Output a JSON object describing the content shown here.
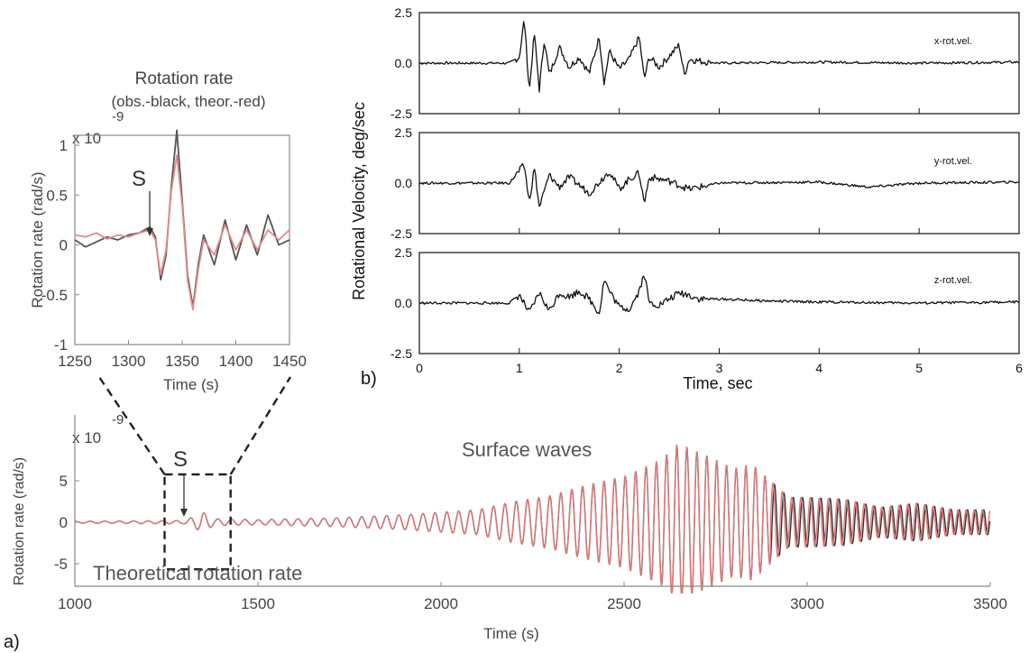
{
  "figure": {
    "panel_a_label": "a)",
    "panel_b_label": "b)"
  },
  "chart_data": [
    {
      "id": "inset",
      "type": "line",
      "title": "Rotation rate",
      "subtitle": "(obs.-black, theor.-red)",
      "xlabel": "Time (s)",
      "ylabel": "Rotation rate (rad/s)",
      "exponent_label": "x 10",
      "exponent_power": "-9",
      "annotation": "S",
      "annotation_x": 1320,
      "xlim": [
        1250,
        1450
      ],
      "ylim": [
        -1,
        1.1
      ],
      "xticks": [
        "1250",
        "1300",
        "1350",
        "1400",
        "1450"
      ],
      "yticks": [
        "1",
        "0.5",
        "0",
        "-0.5",
        "-1"
      ],
      "series": [
        {
          "color": "#555555",
          "x": [
            1250,
            1260,
            1270,
            1280,
            1290,
            1300,
            1310,
            1320,
            1325,
            1330,
            1335,
            1340,
            1345,
            1350,
            1355,
            1360,
            1365,
            1370,
            1380,
            1390,
            1400,
            1410,
            1420,
            1430,
            1440,
            1450
          ],
          "y": [
            0.05,
            -0.02,
            0.03,
            0.08,
            0.05,
            0.1,
            0.12,
            0.18,
            0.08,
            -0.35,
            -0.1,
            0.6,
            1.15,
            0.45,
            -0.3,
            -0.62,
            -0.2,
            0.1,
            -0.2,
            0.25,
            -0.15,
            0.2,
            -0.1,
            0.3,
            0.0,
            0.05
          ]
        },
        {
          "color": "#e38a8a",
          "x": [
            1250,
            1260,
            1270,
            1280,
            1290,
            1300,
            1310,
            1320,
            1325,
            1330,
            1335,
            1340,
            1345,
            1350,
            1355,
            1360,
            1365,
            1370,
            1380,
            1390,
            1400,
            1410,
            1420,
            1430,
            1440,
            1450
          ],
          "y": [
            0.1,
            0.08,
            0.12,
            0.06,
            0.1,
            0.08,
            0.12,
            0.15,
            0.05,
            -0.3,
            -0.05,
            0.55,
            0.9,
            0.4,
            -0.35,
            -0.65,
            -0.25,
            0.05,
            -0.1,
            0.2,
            -0.05,
            0.15,
            -0.05,
            0.15,
            0.05,
            0.15
          ]
        }
      ]
    },
    {
      "id": "rotvel",
      "type": "line",
      "ylabel": "Rotational Velocity, deg/sec",
      "xlabel": "Time, sec",
      "xlim": [
        0,
        6
      ],
      "xticks": [
        "0",
        "1",
        "2",
        "3",
        "4",
        "5",
        "6"
      ],
      "yticks_top": [
        "2.5",
        "0.0",
        "-2.5"
      ],
      "yticks_mid": [
        "2.5",
        "0.0",
        "-2.5"
      ],
      "yticks_bot": [
        "2.5",
        "0.0",
        "-2.5"
      ],
      "series": [
        {
          "name": "x-rot.vel.",
          "x": [
            0,
            0.9,
            1.0,
            1.05,
            1.1,
            1.15,
            1.2,
            1.25,
            1.3,
            1.4,
            1.5,
            1.6,
            1.7,
            1.8,
            1.85,
            1.9,
            2.0,
            2.1,
            2.2,
            2.25,
            2.3,
            2.4,
            2.6,
            2.65,
            2.7,
            2.8,
            3.0,
            4.0,
            5.0,
            6.0
          ],
          "y": [
            0,
            0,
            0.3,
            2.2,
            -1.4,
            1.5,
            -1.3,
            1.2,
            -0.6,
            0.8,
            -0.2,
            0.3,
            -0.5,
            1.3,
            -1.0,
            0.6,
            -0.3,
            0.2,
            1.3,
            -0.8,
            0.3,
            -0.2,
            0.9,
            -0.6,
            0.2,
            0.1,
            0,
            0.05,
            0,
            0.05
          ]
        },
        {
          "name": "y-rot.vel.",
          "x": [
            0,
            0.9,
            1.05,
            1.1,
            1.15,
            1.2,
            1.3,
            1.4,
            1.5,
            1.7,
            1.9,
            2.0,
            2.1,
            2.2,
            2.25,
            2.3,
            2.5,
            2.7,
            3.0,
            4.0,
            4.5,
            5.0,
            6.0
          ],
          "y": [
            0,
            0,
            0.9,
            -1.0,
            0.8,
            -1.2,
            0.4,
            -0.2,
            0.3,
            -0.5,
            0.6,
            -0.3,
            0.2,
            0.5,
            -1.0,
            0.3,
            0.1,
            -0.3,
            0,
            0.05,
            -0.2,
            0,
            0.05
          ]
        },
        {
          "name": "z-rot.vel.",
          "x": [
            0,
            0.9,
            1.0,
            1.1,
            1.2,
            1.3,
            1.4,
            1.5,
            1.6,
            1.7,
            1.8,
            1.85,
            1.9,
            2.0,
            2.1,
            2.2,
            2.25,
            2.3,
            2.4,
            2.6,
            2.7,
            2.8,
            3.0,
            3.5,
            4.0,
            5.0,
            6.0
          ],
          "y": [
            0,
            0,
            0.4,
            -0.5,
            0.5,
            -0.4,
            0.5,
            0.3,
            0.6,
            0.2,
            -0.5,
            1.2,
            0.6,
            -0.2,
            -0.3,
            0.6,
            1.5,
            0.0,
            -0.1,
            0.5,
            0.4,
            0.2,
            0.2,
            0.1,
            0.05,
            0,
            0.05
          ]
        }
      ]
    },
    {
      "id": "theoretical",
      "type": "line",
      "xlabel": "Time (s)",
      "ylabel": "Rotation rate (rad/s)",
      "exponent_label": "x 10",
      "exponent_power": "-9",
      "annotation_s": "S",
      "annotation_surface": "Surface waves",
      "annotation_theoretical": "Theoretical rotation rate",
      "annotation_s_x": 1310,
      "box_x": [
        1250,
        1450
      ],
      "box_y": [
        -6,
        2.5
      ],
      "xlim": [
        1000,
        3500
      ],
      "ylim": [
        -8,
        8
      ],
      "xticks": [
        "1000",
        "1500",
        "2000",
        "2500",
        "3000",
        "3500"
      ],
      "yticks": [
        "5",
        "0",
        "-5"
      ],
      "envelope": {
        "x": [
          1000,
          1300,
          1330,
          1350,
          1380,
          1500,
          1700,
          1800,
          1900,
          2000,
          2100,
          2200,
          2300,
          2400,
          2500,
          2600,
          2650,
          2700,
          2800,
          2850,
          2900,
          2950,
          3000,
          3100,
          3200,
          3300,
          3400,
          3500
        ],
        "amp": [
          0.1,
          0.2,
          0.8,
          1.2,
          0.4,
          0.3,
          0.5,
          0.7,
          0.9,
          1.2,
          1.5,
          2.5,
          3.2,
          4.5,
          5.5,
          7.5,
          9.5,
          8.5,
          6.5,
          7.0,
          5.0,
          3.0,
          3.0,
          2.8,
          1.8,
          2.3,
          1.5,
          1.5
        ]
      },
      "series": [
        {
          "color": "#333333",
          "name": ""
        },
        {
          "color": "#e07a7a",
          "name": ""
        }
      ]
    }
  ]
}
